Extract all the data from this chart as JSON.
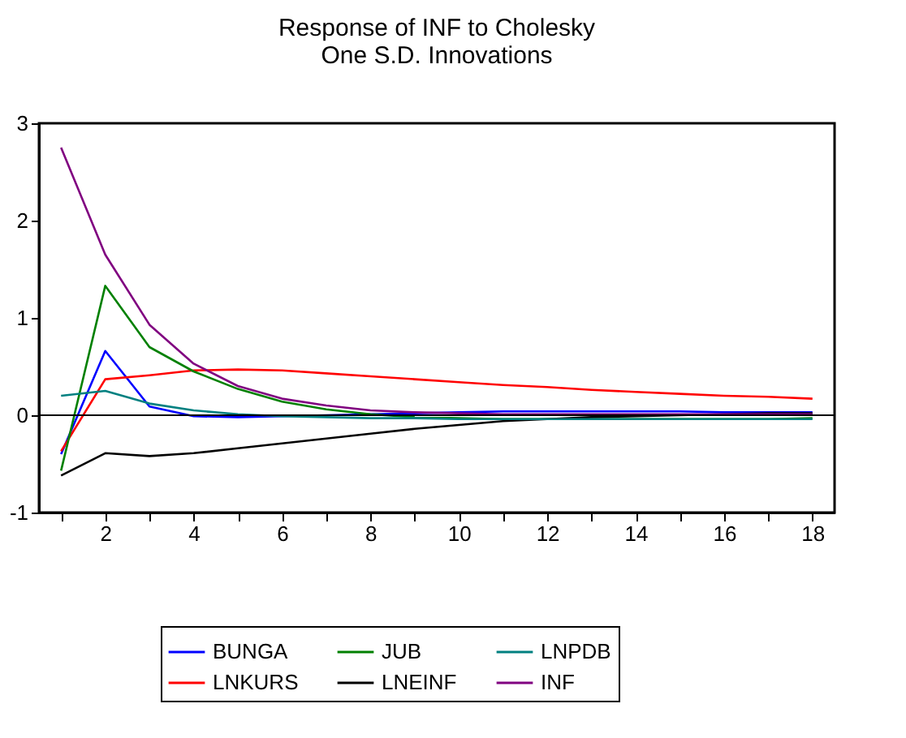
{
  "chart_data": {
    "type": "line",
    "title": [
      "Response of INF to Cholesky",
      "One S.D. Innovations"
    ],
    "x": [
      1,
      2,
      3,
      4,
      5,
      6,
      7,
      8,
      9,
      10,
      11,
      12,
      13,
      14,
      15,
      16,
      17,
      18
    ],
    "series": [
      {
        "name": "BUNGA",
        "color": "#0000ff",
        "values": [
          -0.4,
          0.66,
          0.09,
          -0.01,
          -0.02,
          -0.01,
          0.0,
          0.01,
          0.02,
          0.03,
          0.04,
          0.04,
          0.04,
          0.04,
          0.04,
          0.03,
          0.03,
          0.03
        ]
      },
      {
        "name": "LNKURS",
        "color": "#ff0000",
        "values": [
          -0.37,
          0.37,
          0.41,
          0.46,
          0.47,
          0.46,
          0.43,
          0.4,
          0.37,
          0.34,
          0.31,
          0.29,
          0.26,
          0.24,
          0.22,
          0.2,
          0.19,
          0.17
        ]
      },
      {
        "name": "JUB",
        "color": "#008000",
        "values": [
          -0.57,
          1.33,
          0.7,
          0.45,
          0.27,
          0.14,
          0.06,
          0.01,
          -0.02,
          -0.03,
          -0.04,
          -0.04,
          -0.04,
          -0.04,
          -0.04,
          -0.04,
          -0.04,
          -0.03
        ]
      },
      {
        "name": "LNEINF",
        "color": "#000000",
        "values": [
          -0.62,
          -0.39,
          -0.42,
          -0.39,
          -0.34,
          -0.29,
          -0.24,
          -0.19,
          -0.14,
          -0.1,
          -0.06,
          -0.04,
          -0.02,
          -0.01,
          0.0,
          0.01,
          0.02,
          0.02
        ]
      },
      {
        "name": "LNPDB",
        "color": "#008080",
        "values": [
          0.2,
          0.25,
          0.12,
          0.05,
          0.01,
          -0.01,
          -0.02,
          -0.03,
          -0.03,
          -0.04,
          -0.04,
          -0.04,
          -0.04,
          -0.04,
          -0.04,
          -0.04,
          -0.04,
          -0.04
        ]
      },
      {
        "name": "INF",
        "color": "#800080",
        "values": [
          2.75,
          1.65,
          0.93,
          0.53,
          0.3,
          0.17,
          0.1,
          0.05,
          0.03,
          0.02,
          0.01,
          0.01,
          0.01,
          0.01,
          0.01,
          0.01,
          0.01,
          0.01
        ]
      }
    ],
    "xlim": [
      0.5,
      18.5
    ],
    "xticks": [
      {
        "value": 1,
        "label": null
      },
      2,
      {
        "value": 3,
        "label": null
      },
      4,
      {
        "value": 5,
        "label": null
      },
      6,
      {
        "value": 7,
        "label": null
      },
      8,
      {
        "value": 9,
        "label": null
      },
      10,
      {
        "value": 11,
        "label": null
      },
      12,
      {
        "value": 13,
        "label": null
      },
      14,
      {
        "value": 15,
        "label": null
      },
      16,
      {
        "value": 17,
        "label": null
      },
      18
    ],
    "ylim": [
      -1,
      3
    ],
    "yticks": [
      -1,
      0,
      1,
      2,
      3
    ],
    "ref_lines": [
      {
        "axis": "y",
        "value": 0,
        "color": "#000000"
      }
    ],
    "grid": false,
    "legend": "bottom",
    "line_style": "solid",
    "marker": "none"
  }
}
